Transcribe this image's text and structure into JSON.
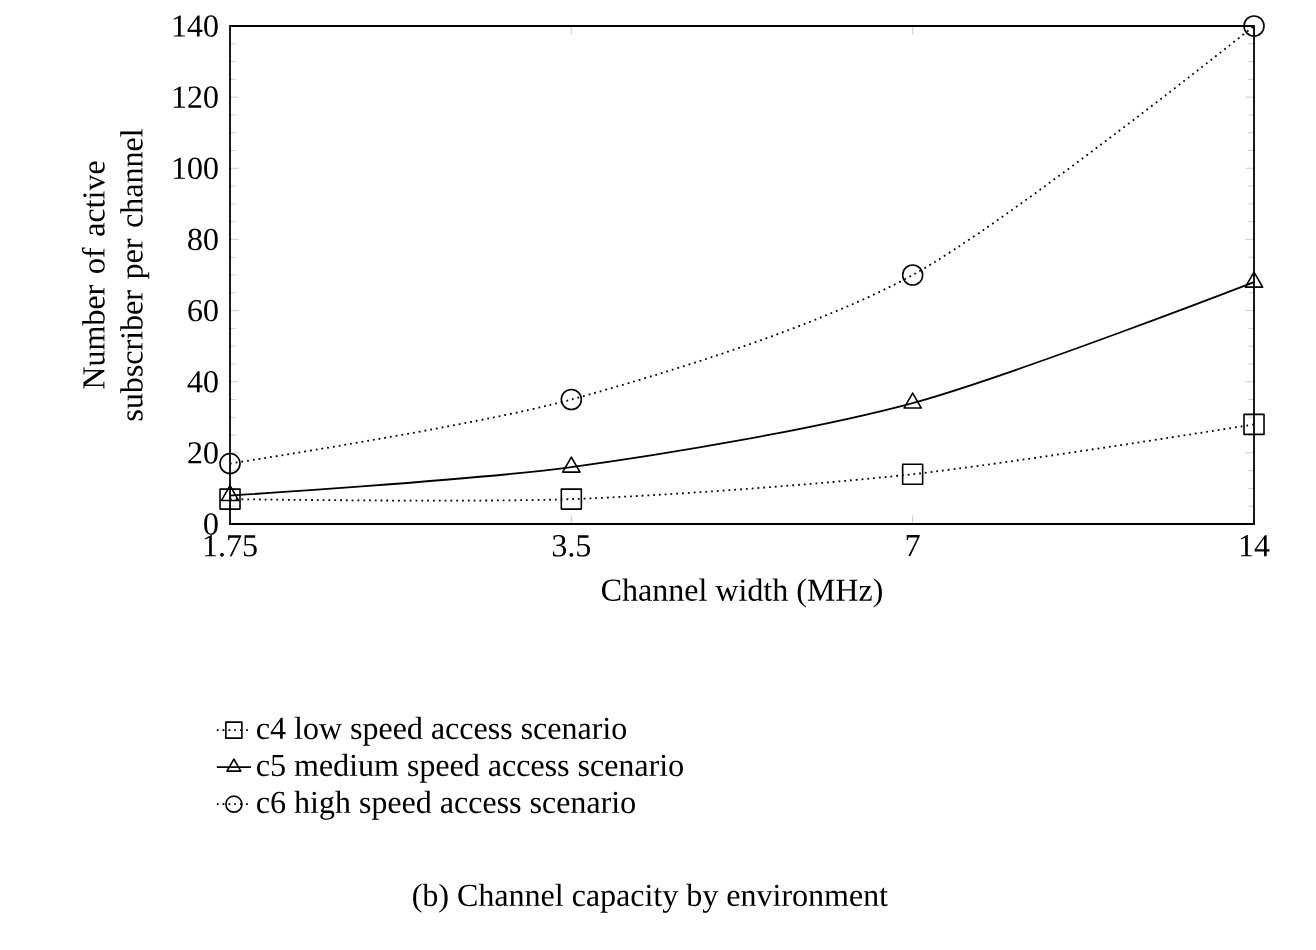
{
  "chart_data": {
    "type": "line",
    "xlabel": "Channel width (MHz)",
    "ylabel": "Number of active subscriber per channel",
    "x": [
      1.75,
      3.5,
      7,
      14
    ],
    "log": "x",
    "xlim": [
      1.75,
      14
    ],
    "xticks": [
      1.75,
      3.5,
      7,
      14
    ],
    "ylim": [
      0,
      140
    ],
    "yticks": [
      0,
      20,
      40,
      60,
      80,
      100,
      120,
      140
    ],
    "grid": false,
    "legend": "bottom",
    "series": [
      {
        "name": "c4 low speed access scenario",
        "color": "#000000",
        "marker": "square",
        "line_style": "dotted",
        "values": [
          7,
          7,
          14,
          28
        ]
      },
      {
        "name": "c5 medium speed access scenario",
        "color": "#000000",
        "marker": "triangle",
        "line_style": "solid",
        "values": [
          8,
          16,
          34,
          68
        ]
      },
      {
        "name": "c6 high speed access scenario",
        "color": "#000000",
        "marker": "circle",
        "line_style": "dotted",
        "values": [
          17,
          35,
          70,
          140
        ]
      }
    ],
    "annotations": [
      "(b)  Channel capacity by environment"
    ]
  }
}
